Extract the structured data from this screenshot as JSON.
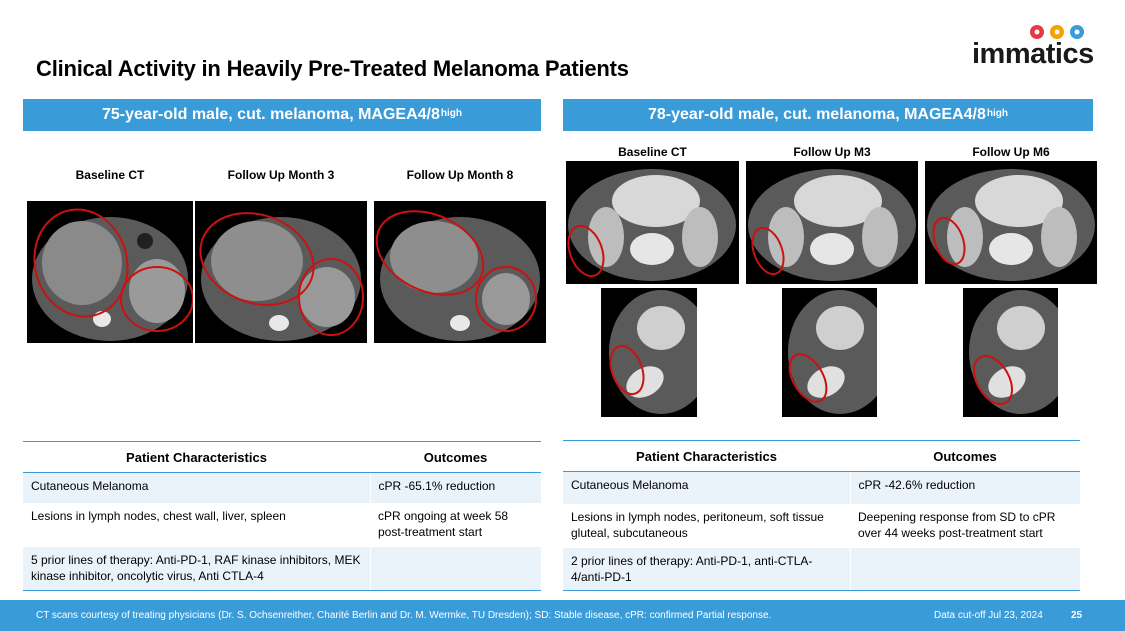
{
  "title": "Clinical Activity in Heavily Pre-Treated Melanoma Patients",
  "logo": {
    "text": "immatics",
    "dot_colors": [
      "#e63946",
      "#f4a300",
      "#3a9bd9"
    ]
  },
  "colors": {
    "accent": "#3a9bd9",
    "row_alt": "#eaf2fa",
    "circle": "#cc1111"
  },
  "left": {
    "banner": "75-year-old male, cut. melanoma, MAGEA4/8",
    "banner_sup": "high",
    "scan_labels": [
      "Baseline CT",
      "Follow Up Month 3",
      "Follow Up Month 8"
    ],
    "table": {
      "headers": [
        "Patient Characteristics",
        "Outcomes"
      ],
      "rows": [
        [
          "Cutaneous Melanoma",
          "cPR -65.1% reduction"
        ],
        [
          "Lesions in lymph nodes, chest wall, liver, spleen",
          "cPR ongoing at week 58 post-treatment start"
        ],
        [
          "5 prior lines of therapy: Anti-PD-1, RAF kinase inhibitors, MEK kinase inhibitor, oncolytic virus, Anti CTLA-4",
          ""
        ]
      ]
    }
  },
  "right": {
    "banner": "78-year-old male, cut. melanoma, MAGEA4/8",
    "banner_sup": "high",
    "scan_labels": [
      "Baseline CT",
      "Follow Up M3",
      "Follow Up M6"
    ],
    "table": {
      "headers": [
        "Patient Characteristics",
        "Outcomes"
      ],
      "rows": [
        [
          "Cutaneous Melanoma",
          "cPR  -42.6% reduction"
        ],
        [
          "Lesions in lymph nodes, peritoneum, soft tissue gluteal, subcutaneous",
          "Deepening response from SD to cPR over 44 weeks post-treatment start"
        ],
        [
          "2 prior lines of therapy: Anti-PD-1, anti-CTLA-4/anti-PD-1",
          ""
        ]
      ]
    }
  },
  "footer": {
    "note": "CT scans courtesy of treating physicians (Dr. S. Ochsenreither, Charité Berlin and Dr. M. Wermke, TU Dresden); SD: Stable disease, cPR: confirmed Partial response.",
    "cutoff": "Data cut-off Jul 23, 2024",
    "page": "25"
  }
}
